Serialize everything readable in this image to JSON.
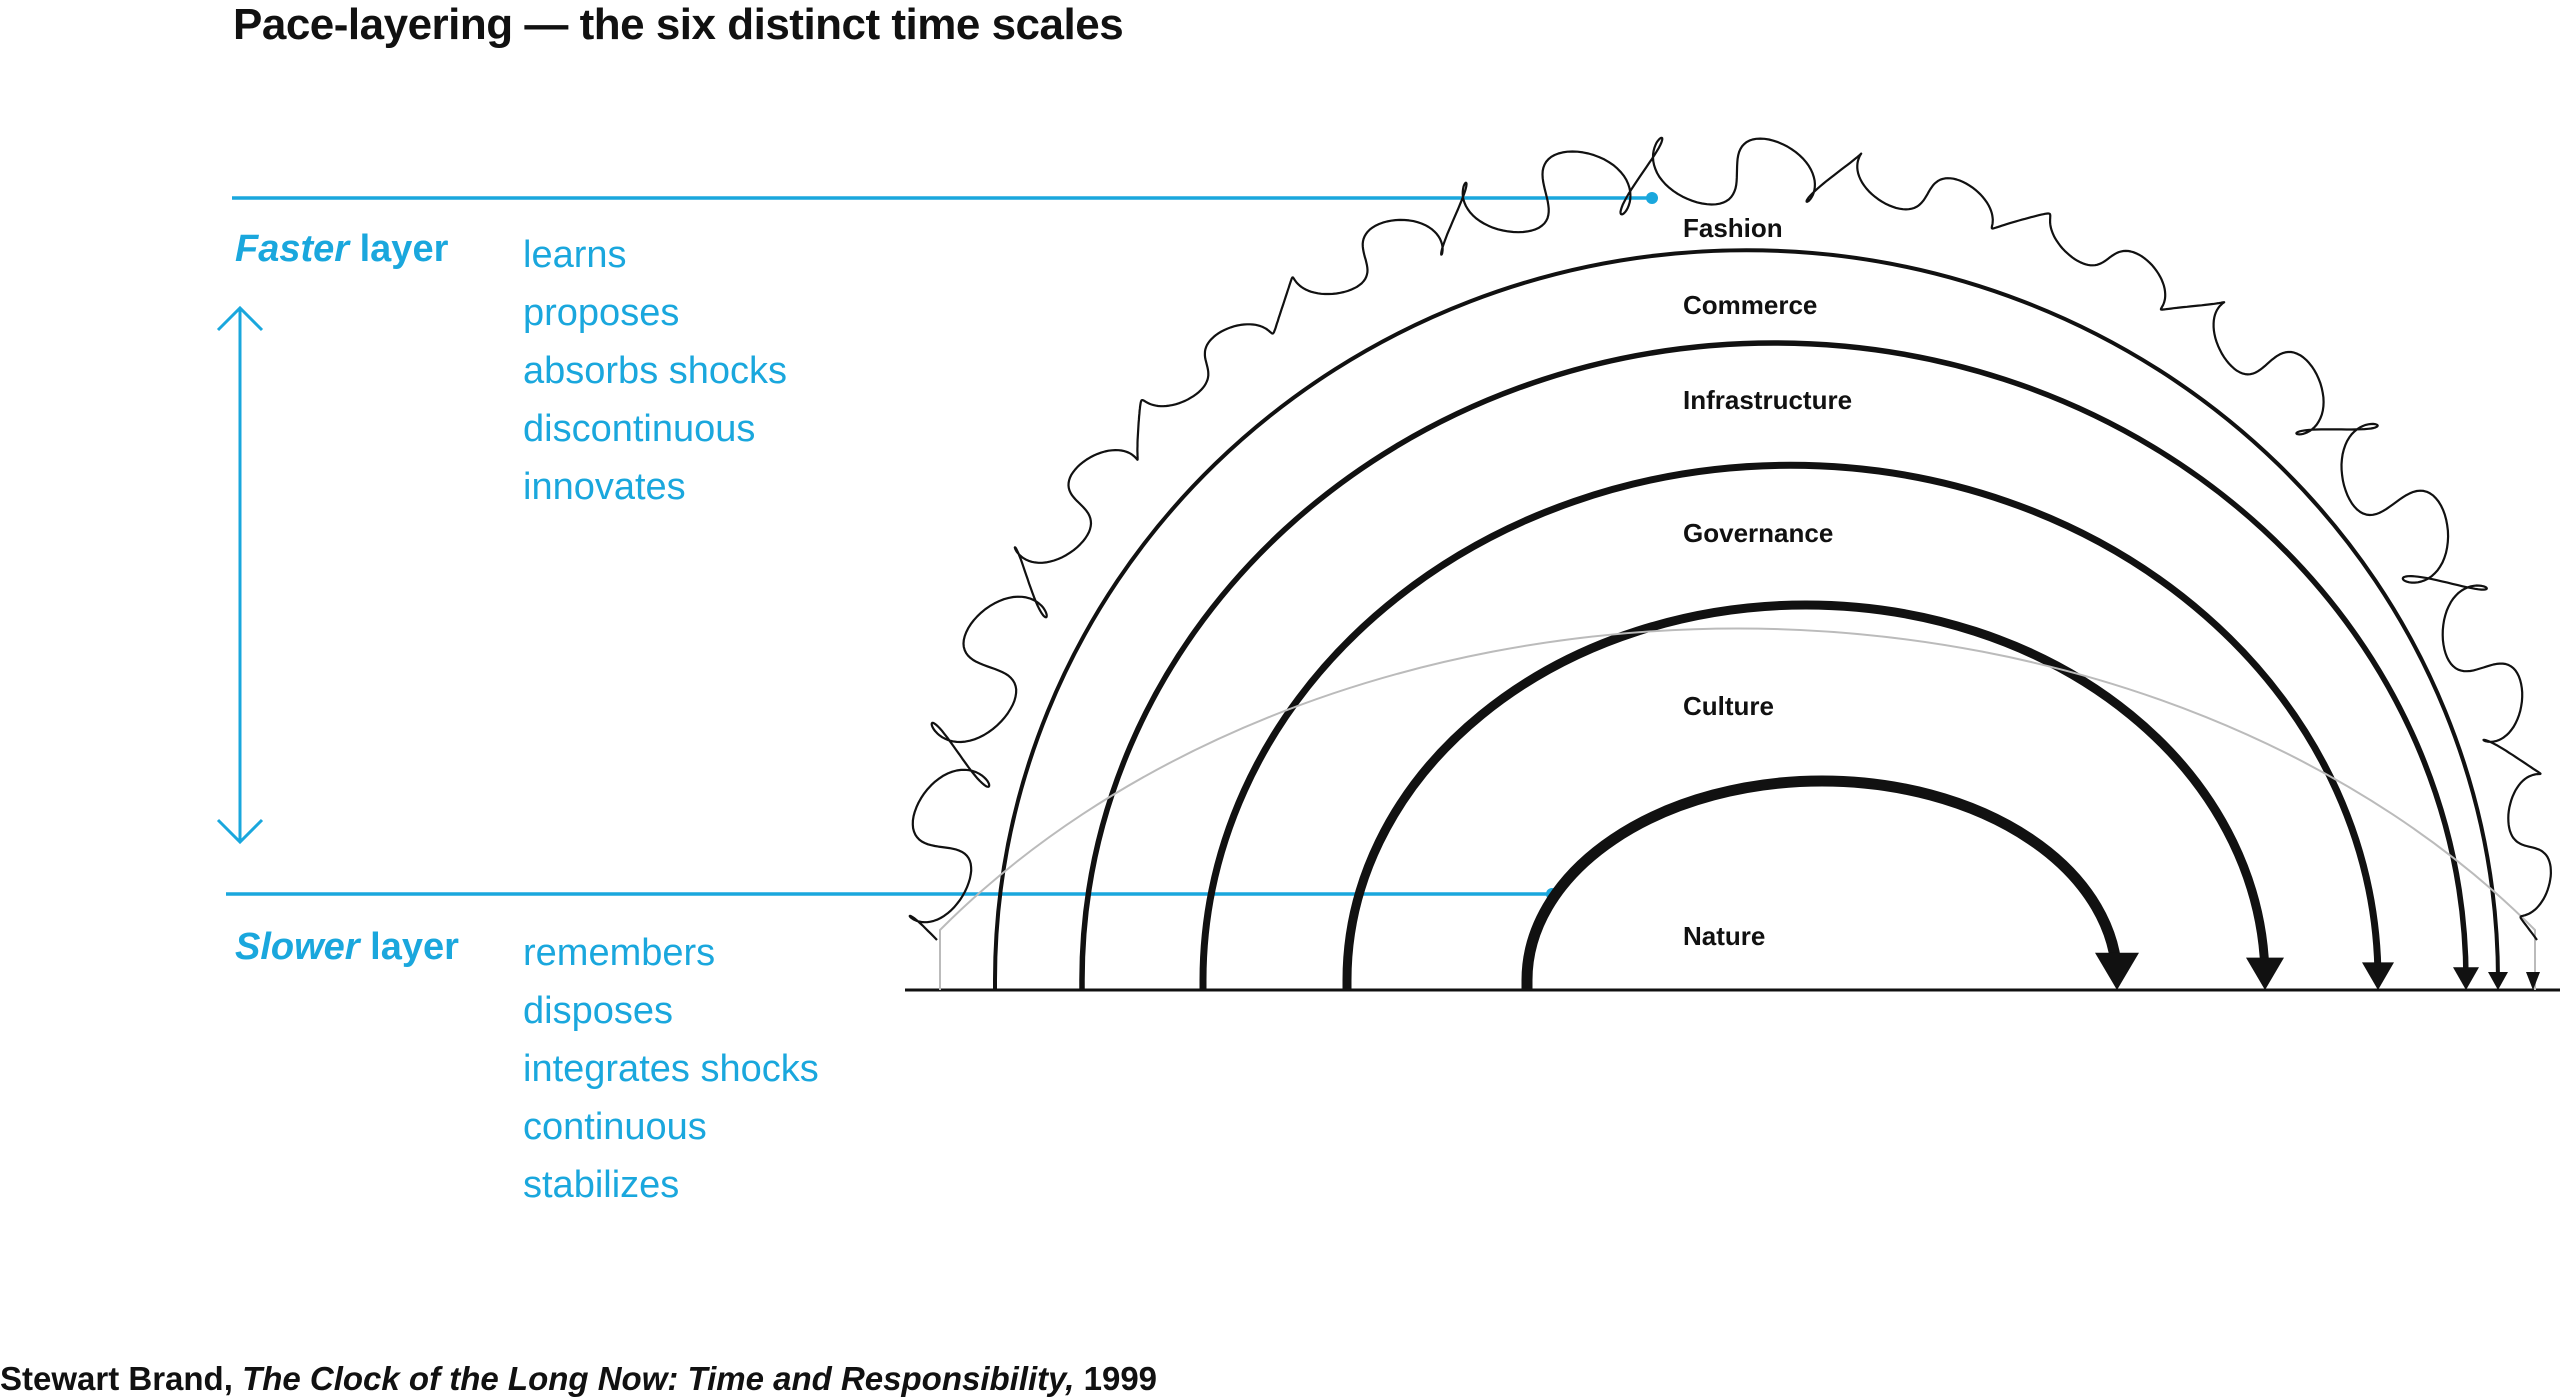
{
  "title": "Pace-layering — the six distinct time scales",
  "faster": {
    "label_emphasis": "Faster",
    "label_rest": " layer",
    "traits": [
      "learns",
      "proposes",
      "absorbs shocks",
      "discontinuous",
      "innovates"
    ]
  },
  "slower": {
    "label_emphasis": "Slower",
    "label_rest": " layer",
    "traits": [
      "remembers",
      "disposes",
      "integrates shocks",
      "continuous",
      "stabilizes"
    ]
  },
  "layers": [
    "Fashion",
    "Commerce",
    "Infrastructure",
    "Governance",
    "Culture",
    "Nature"
  ],
  "citation": {
    "author": "Stewart Brand, ",
    "book": "The Clock of the Long Now: Time and Responsibility,",
    "year": " 1999"
  },
  "colors": {
    "accent": "#1aa7dd",
    "ink": "#111111",
    "guide": "#bbbbbb"
  }
}
